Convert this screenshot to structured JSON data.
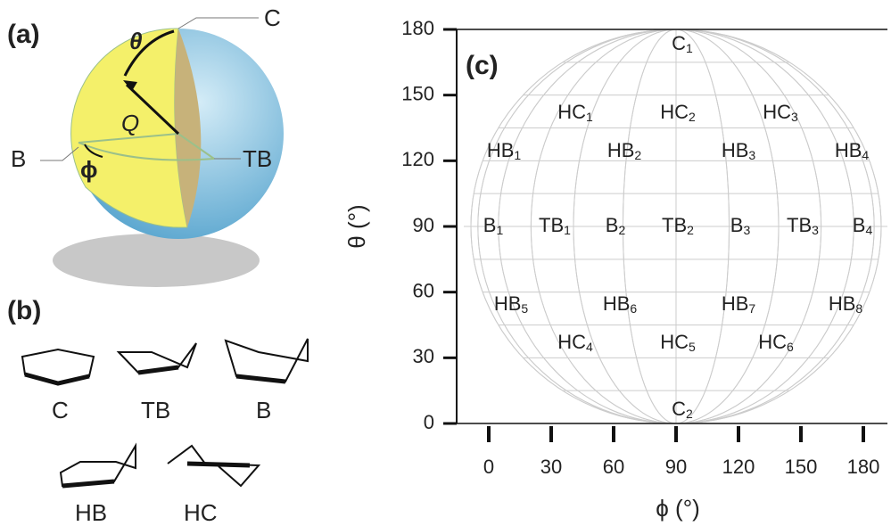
{
  "panel_a": {
    "label": "(a)",
    "texts": [
      "C",
      "B",
      "TB",
      "θ",
      "Q",
      "ϕ"
    ]
  },
  "panel_b": {
    "label": "(b)",
    "conformers": [
      "C",
      "TB",
      "B",
      "HB",
      "HC"
    ]
  },
  "panel_c": {
    "label": "(c)",
    "y_axis_label": "θ (°)",
    "x_axis_label": "ϕ (°)",
    "y_ticks": [
      "0",
      "30",
      "60",
      "90",
      "120",
      "150",
      "180"
    ],
    "x_ticks": [
      "0",
      "30",
      "60",
      "90",
      "120",
      "150",
      "180"
    ],
    "points": [
      {
        "name": "C",
        "sub": "1"
      },
      {
        "name": "HC",
        "sub": "1"
      },
      {
        "name": "HC",
        "sub": "2"
      },
      {
        "name": "HC",
        "sub": "3"
      },
      {
        "name": "HB",
        "sub": "1"
      },
      {
        "name": "HB",
        "sub": "2"
      },
      {
        "name": "HB",
        "sub": "3"
      },
      {
        "name": "HB",
        "sub": "4"
      },
      {
        "name": "B",
        "sub": "1"
      },
      {
        "name": "TB",
        "sub": "1"
      },
      {
        "name": "B",
        "sub": "2"
      },
      {
        "name": "TB",
        "sub": "2"
      },
      {
        "name": "B",
        "sub": "3"
      },
      {
        "name": "TB",
        "sub": "3"
      },
      {
        "name": "B",
        "sub": "4"
      },
      {
        "name": "HB",
        "sub": "5"
      },
      {
        "name": "HB",
        "sub": "6"
      },
      {
        "name": "HB",
        "sub": "7"
      },
      {
        "name": "HB",
        "sub": "8"
      },
      {
        "name": "HC",
        "sub": "4"
      },
      {
        "name": "HC",
        "sub": "5"
      },
      {
        "name": "HC",
        "sub": "6"
      },
      {
        "name": "C",
        "sub": "2"
      }
    ]
  }
}
